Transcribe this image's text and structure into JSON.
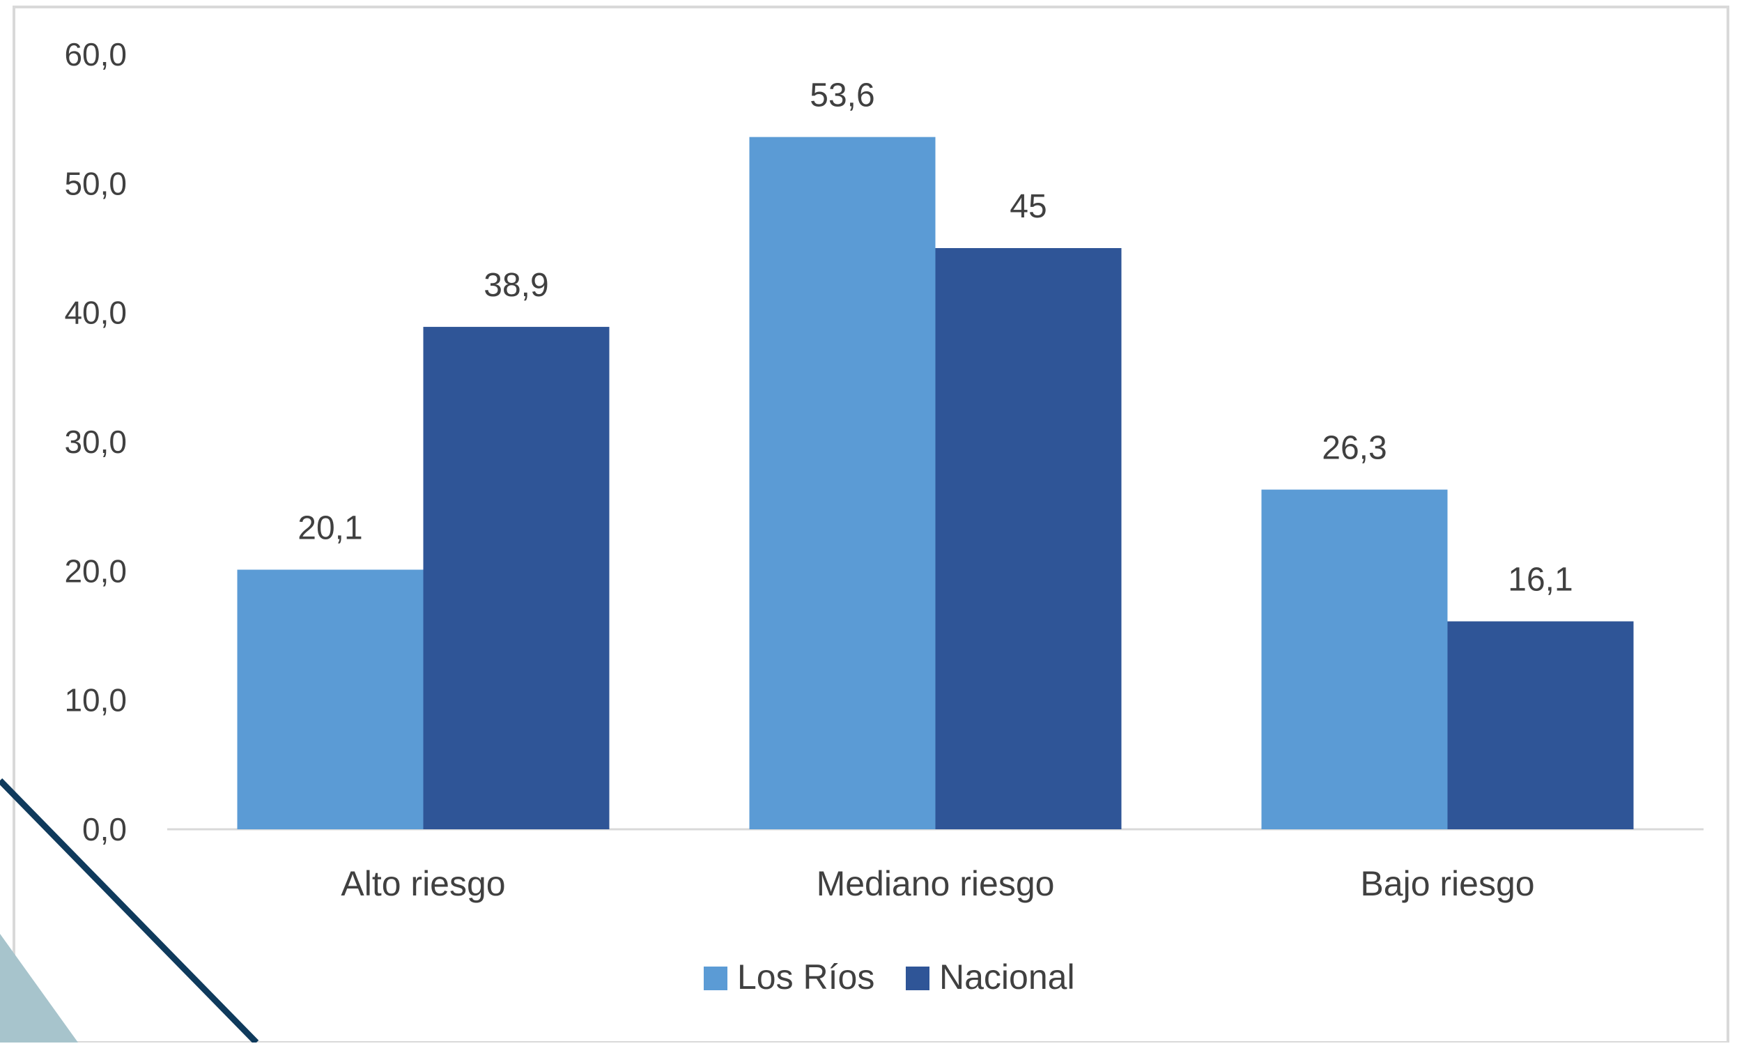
{
  "chart_data": {
    "type": "bar",
    "title": "",
    "xlabel": "",
    "ylabel": "",
    "categories": [
      "Alto riesgo",
      "Mediano riesgo",
      "Bajo riesgo"
    ],
    "series": [
      {
        "name": "Los Ríos",
        "values": [
          20.1,
          53.6,
          26.3
        ],
        "labels": [
          "20,1",
          "53,6",
          "26,3"
        ],
        "color": "#5b9bd5"
      },
      {
        "name": "Nacional",
        "values": [
          38.9,
          45,
          16.1
        ],
        "labels": [
          "38,9",
          "45",
          "16,1"
        ],
        "color": "#2f5597"
      }
    ],
    "ylim": [
      0,
      60
    ],
    "yticks": [
      0,
      10,
      20,
      30,
      40,
      50,
      60
    ],
    "ytick_labels": [
      "0,0",
      "10,0",
      "20,0",
      "30,0",
      "40,0",
      "50,0",
      "60,0"
    ],
    "grid": false,
    "legend_position": "bottom-center"
  },
  "colors": {
    "axis": "#d9d9d9",
    "text": "#404040",
    "frame": "#d9d9d9",
    "corner_line": "#0f3a5c",
    "corner_triangle": "#a7c4cc"
  }
}
